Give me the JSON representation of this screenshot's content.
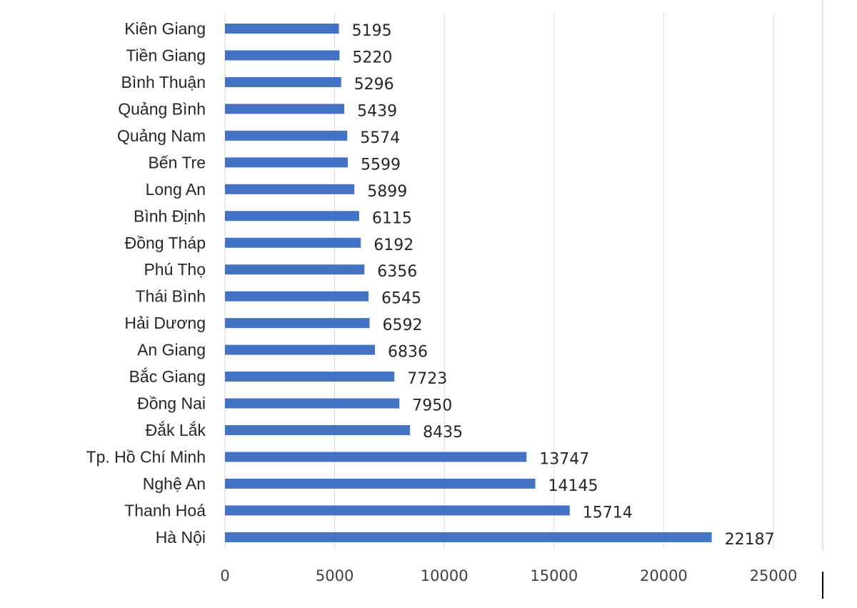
{
  "chart_data": {
    "type": "bar",
    "orientation": "horizontal",
    "categories": [
      "Kiên Giang",
      "Tiền Giang",
      "Bình Thuận",
      "Quảng Bình",
      "Quảng Nam",
      "Bến Tre",
      "Long An",
      "Bình Định",
      "Đồng Tháp",
      "Phú Thọ",
      "Thái Bình",
      "Hải Dương",
      "An Giang",
      "Bắc Giang",
      "Đồng Nai",
      "Đắk Lắk",
      "Tp. Hồ Chí Minh",
      "Nghệ An",
      "Thanh Hoá",
      "Hà Nội"
    ],
    "values": [
      5195,
      5220,
      5296,
      5439,
      5574,
      5599,
      5899,
      6115,
      6192,
      6356,
      6545,
      6592,
      6836,
      7723,
      7950,
      8435,
      13747,
      14145,
      15714,
      22187
    ],
    "title": "",
    "xlabel": "",
    "ylabel": "",
    "xlim": [
      0,
      25000
    ],
    "ticks": [
      0,
      5000,
      10000,
      15000,
      20000,
      25000
    ],
    "grid": true,
    "legend": "none",
    "bar_color": "#4472c4",
    "text_color": "#262626",
    "grid_color": "#d9d9d9"
  }
}
